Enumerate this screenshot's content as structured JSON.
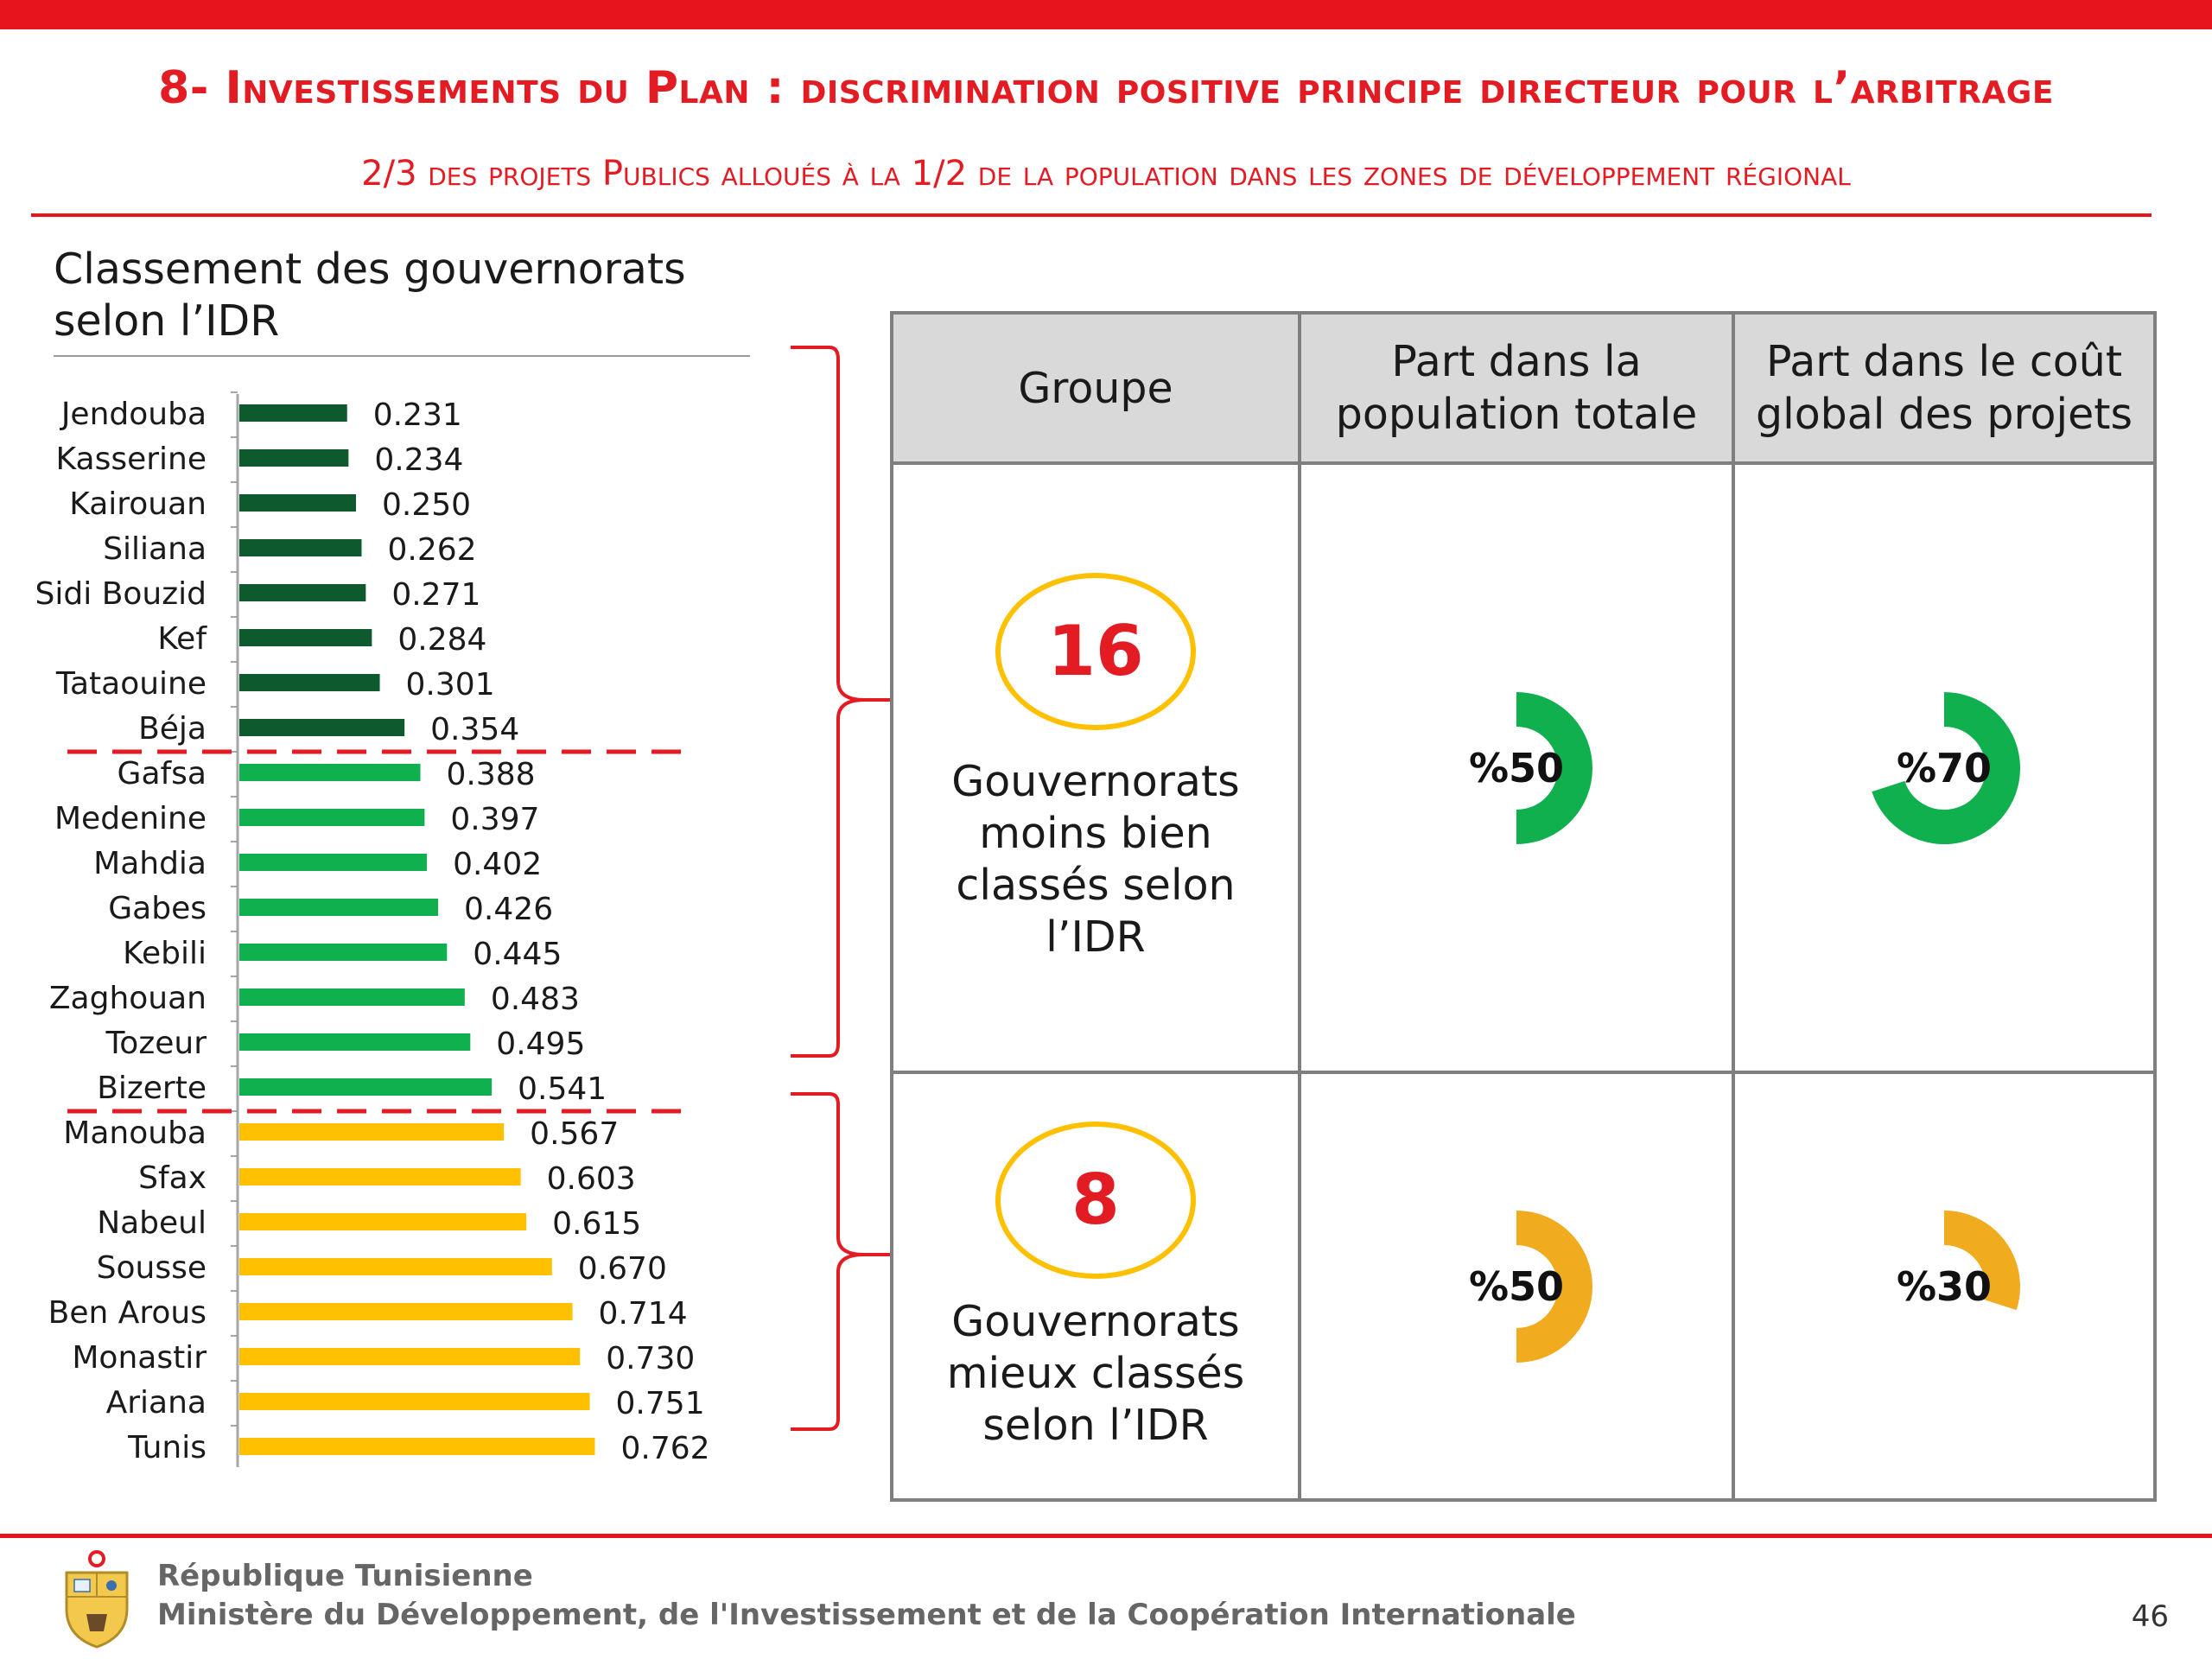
{
  "header": {
    "title": "8- Investissements du Plan : discrimination positive principe directeur pour l’arbitrage",
    "subtitle": "2/3 des projets Publics alloués à la 1/2 de la population dans les zones de développement régional"
  },
  "chart_title_line1": "Classement des gouvernorats",
  "chart_title_line2": "selon l’IDR",
  "chart_data": {
    "type": "bar",
    "orientation": "horizontal",
    "categories": [
      "Jendouba",
      "Kasserine",
      "Kairouan",
      "Siliana",
      "Sidi Bouzid",
      "Kef",
      "Tataouine",
      "Béja",
      "Gafsa",
      "Medenine",
      "Mahdia",
      "Gabes",
      "Kebili",
      "Zaghouan",
      "Tozeur",
      "Bizerte",
      "Manouba",
      "Sfax",
      "Nabeul",
      "Sousse",
      "Ben Arous",
      "Monastir",
      "Ariana",
      "Tunis"
    ],
    "values": [
      0.231,
      0.234,
      0.25,
      0.262,
      0.271,
      0.284,
      0.301,
      0.354,
      0.388,
      0.397,
      0.402,
      0.426,
      0.445,
      0.483,
      0.495,
      0.541,
      0.567,
      0.603,
      0.615,
      0.67,
      0.714,
      0.73,
      0.751,
      0.762
    ],
    "labels": [
      "0.231",
      "0.234",
      "0.250",
      "0.262",
      "0.271",
      "0.284",
      "0.301",
      "0.354",
      "0.388",
      "0.397",
      "0.402",
      "0.426",
      "0.445",
      "0.483",
      "0.495",
      "0.541",
      "0.567",
      "0.603",
      "0.615",
      "0.670",
      "0.714",
      "0.730",
      "0.751",
      "0.762"
    ],
    "groups": [
      {
        "start": 0,
        "end": 7,
        "color": "#0e5a2e"
      },
      {
        "start": 8,
        "end": 15,
        "color": "#10b04e"
      },
      {
        "start": 16,
        "end": 23,
        "color": "#ffc000"
      }
    ],
    "separators_after": [
      7,
      15
    ],
    "separator_color": "#e31b23",
    "xlim": [
      0,
      0.8
    ],
    "grid": false,
    "legend": "none"
  },
  "table": {
    "headers": [
      "Groupe",
      "Part dans la population totale",
      "Part dans le coût global des projets"
    ],
    "rows": [
      {
        "count": "16",
        "description": "Gouvernorats moins bien classés selon l’IDR",
        "population_share": {
          "label": "%50",
          "value": 0.5,
          "color": "#10b04e"
        },
        "cost_share": {
          "label": "%70",
          "value": 0.7,
          "color": "#10b04e"
        }
      },
      {
        "count": "8",
        "description": "Gouvernorats mieux classés selon l’IDR",
        "population_share": {
          "label": "%50",
          "value": 0.5,
          "color": "#f0ab1e"
        },
        "cost_share": {
          "label": "%30",
          "value": 0.3,
          "color": "#f0ab1e"
        }
      }
    ]
  },
  "footer": {
    "line1": "République Tunisienne",
    "line2": "Ministère du Développement, de l'Investissement et de la Coopération Internationale",
    "page_number": "46"
  },
  "colors": {
    "accent": "#e31b23",
    "dark_green": "#0e5a2e",
    "green": "#10b04e",
    "yellow": "#ffc000",
    "orange": "#f0ab1e"
  },
  "icons": {
    "logo": "tunisia-coat-of-arms-icon"
  }
}
